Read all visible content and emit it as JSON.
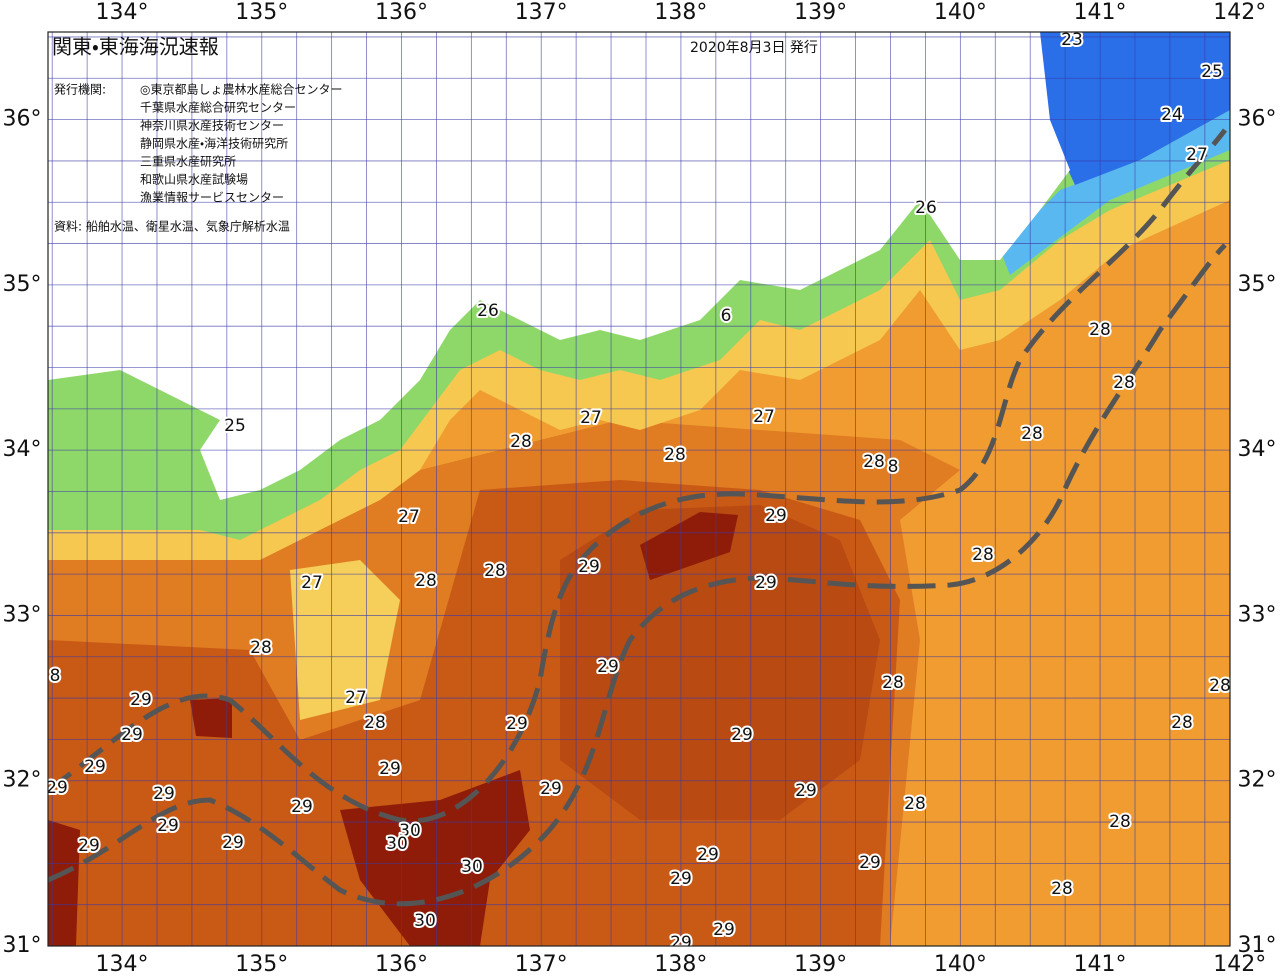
{
  "header": {
    "title": "関東・東海海況速報",
    "date": "2020年8月3日 発行",
    "issuers_label": "発行機関:",
    "issuers": [
      "◎東京都島しょ農林水産総合センター",
      "千葉県水産総合研究センター",
      "神奈川県水産技術センター",
      "静岡県水産・海洋技術研究所",
      "三重県水産研究所",
      "和歌山県水産試験場",
      "漁業情報サービスセンター"
    ],
    "source": "資料: 船舶水温、衛星水温、気象庁解析水温"
  },
  "map": {
    "xlim": [
      133.47,
      141.93
    ],
    "ylim": [
      31,
      36.53
    ],
    "grid_step": 0.25,
    "xticks": [
      {
        "value": 134,
        "label": "134°"
      },
      {
        "value": 135,
        "label": "135°"
      },
      {
        "value": 136,
        "label": "136°"
      },
      {
        "value": 137,
        "label": "137°"
      },
      {
        "value": 138,
        "label": "138°"
      },
      {
        "value": 139,
        "label": "139°"
      },
      {
        "value": 140,
        "label": "140°"
      },
      {
        "value": 141,
        "label": "141°"
      },
      {
        "value": 142,
        "label": "142°"
      }
    ],
    "yticks": [
      {
        "value": 31,
        "label": "31°"
      },
      {
        "value": 32,
        "label": "32°"
      },
      {
        "value": 33,
        "label": "33°"
      },
      {
        "value": 34,
        "label": "34°"
      },
      {
        "value": 35,
        "label": "35°"
      },
      {
        "value": 36,
        "label": "36°"
      }
    ],
    "contour_labels": [
      23,
      25,
      24,
      27,
      26,
      26,
      6,
      25,
      27,
      27,
      28,
      28,
      28,
      8,
      28,
      28,
      28,
      29,
      27,
      28,
      29,
      29,
      28,
      28,
      27,
      28,
      8,
      29,
      28,
      28,
      29,
      27,
      28,
      29,
      28,
      29,
      29,
      29,
      29,
      29,
      29,
      29,
      29,
      28,
      28,
      29,
      30,
      30,
      29,
      29,
      29,
      29,
      30,
      29,
      28,
      30,
      29,
      29,
      29
    ]
  }
}
